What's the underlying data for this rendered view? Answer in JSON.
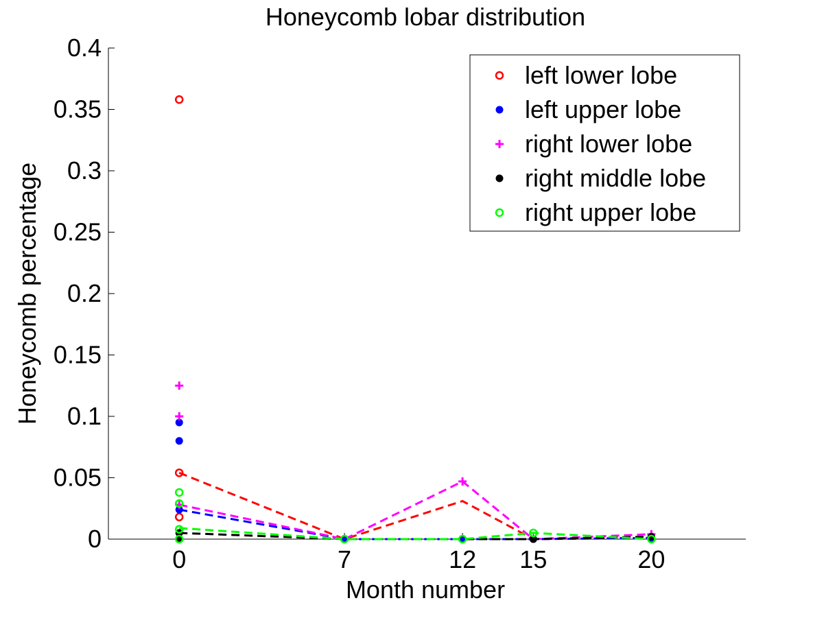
{
  "chart_data": {
    "type": "scatter",
    "title": "Honeycomb lobar distribution",
    "xlabel": "Month number",
    "ylabel": "Honeycomb percentage",
    "xlim": [
      -3,
      24
    ],
    "ylim": [
      0,
      0.4
    ],
    "x_ticks": [
      0,
      7,
      12,
      15,
      20
    ],
    "x_tick_labels": [
      "0",
      "7",
      "12",
      "15",
      "20"
    ],
    "y_ticks": [
      0,
      0.05,
      0.1,
      0.15,
      0.2,
      0.25,
      0.3,
      0.35,
      0.4
    ],
    "y_tick_labels": [
      "0",
      "0.05",
      "0.1",
      "0.15",
      "0.2",
      "0.25",
      "0.3",
      "0.35",
      "0.4"
    ],
    "grid": false,
    "legend_position": "top-right",
    "series": [
      {
        "name": "left lower lobe",
        "color": "#ff0000",
        "marker": "circle-open",
        "points": [
          [
            0,
            0.358
          ],
          [
            0,
            0.054
          ],
          [
            0,
            0.018
          ]
        ],
        "line": [
          [
            0,
            0.054
          ],
          [
            7,
            0.0
          ],
          [
            12,
            0.031
          ],
          [
            15,
            0.0
          ],
          [
            20,
            0.001
          ]
        ]
      },
      {
        "name": "left upper lobe",
        "color": "#0000ff",
        "marker": "dot",
        "points": [
          [
            0,
            0.095
          ],
          [
            0,
            0.08
          ],
          [
            0,
            0.024
          ],
          [
            7,
            0.0
          ],
          [
            12,
            0.0
          ],
          [
            15,
            0.0
          ],
          [
            20,
            0.001
          ]
        ],
        "line": [
          [
            0,
            0.024
          ],
          [
            7,
            0.0
          ],
          [
            12,
            0.0
          ],
          [
            15,
            0.0
          ],
          [
            20,
            0.001
          ]
        ]
      },
      {
        "name": "right lower lobe",
        "color": "#ff00ff",
        "marker": "plus",
        "points": [
          [
            0,
            0.125
          ],
          [
            0,
            0.1
          ],
          [
            0,
            0.028
          ],
          [
            12,
            0.047
          ],
          [
            20,
            0.004
          ]
        ],
        "line": [
          [
            0,
            0.028
          ],
          [
            7,
            0.0
          ],
          [
            12,
            0.047
          ],
          [
            15,
            0.0
          ],
          [
            20,
            0.004
          ]
        ]
      },
      {
        "name": "right middle lobe",
        "color": "#000000",
        "marker": "dot",
        "points": [
          [
            0,
            0.005
          ],
          [
            0,
            0.0
          ],
          [
            15,
            0.0
          ],
          [
            20,
            0.002
          ]
        ],
        "line": [
          [
            0,
            0.005
          ],
          [
            7,
            0.0
          ],
          [
            12,
            0.0
          ],
          [
            15,
            0.0
          ],
          [
            20,
            0.002
          ]
        ]
      },
      {
        "name": "right upper lobe",
        "color": "#00ff00",
        "marker": "circle-open",
        "points": [
          [
            0,
            0.038
          ],
          [
            0,
            0.029
          ],
          [
            0,
            0.008
          ],
          [
            0,
            0.0
          ],
          [
            7,
            0.0
          ],
          [
            12,
            0.0
          ],
          [
            15,
            0.005
          ],
          [
            20,
            0.0
          ]
        ],
        "line": [
          [
            0,
            0.009
          ],
          [
            7,
            0.0
          ],
          [
            12,
            0.0
          ],
          [
            15,
            0.005
          ],
          [
            20,
            0.0
          ]
        ]
      }
    ]
  }
}
